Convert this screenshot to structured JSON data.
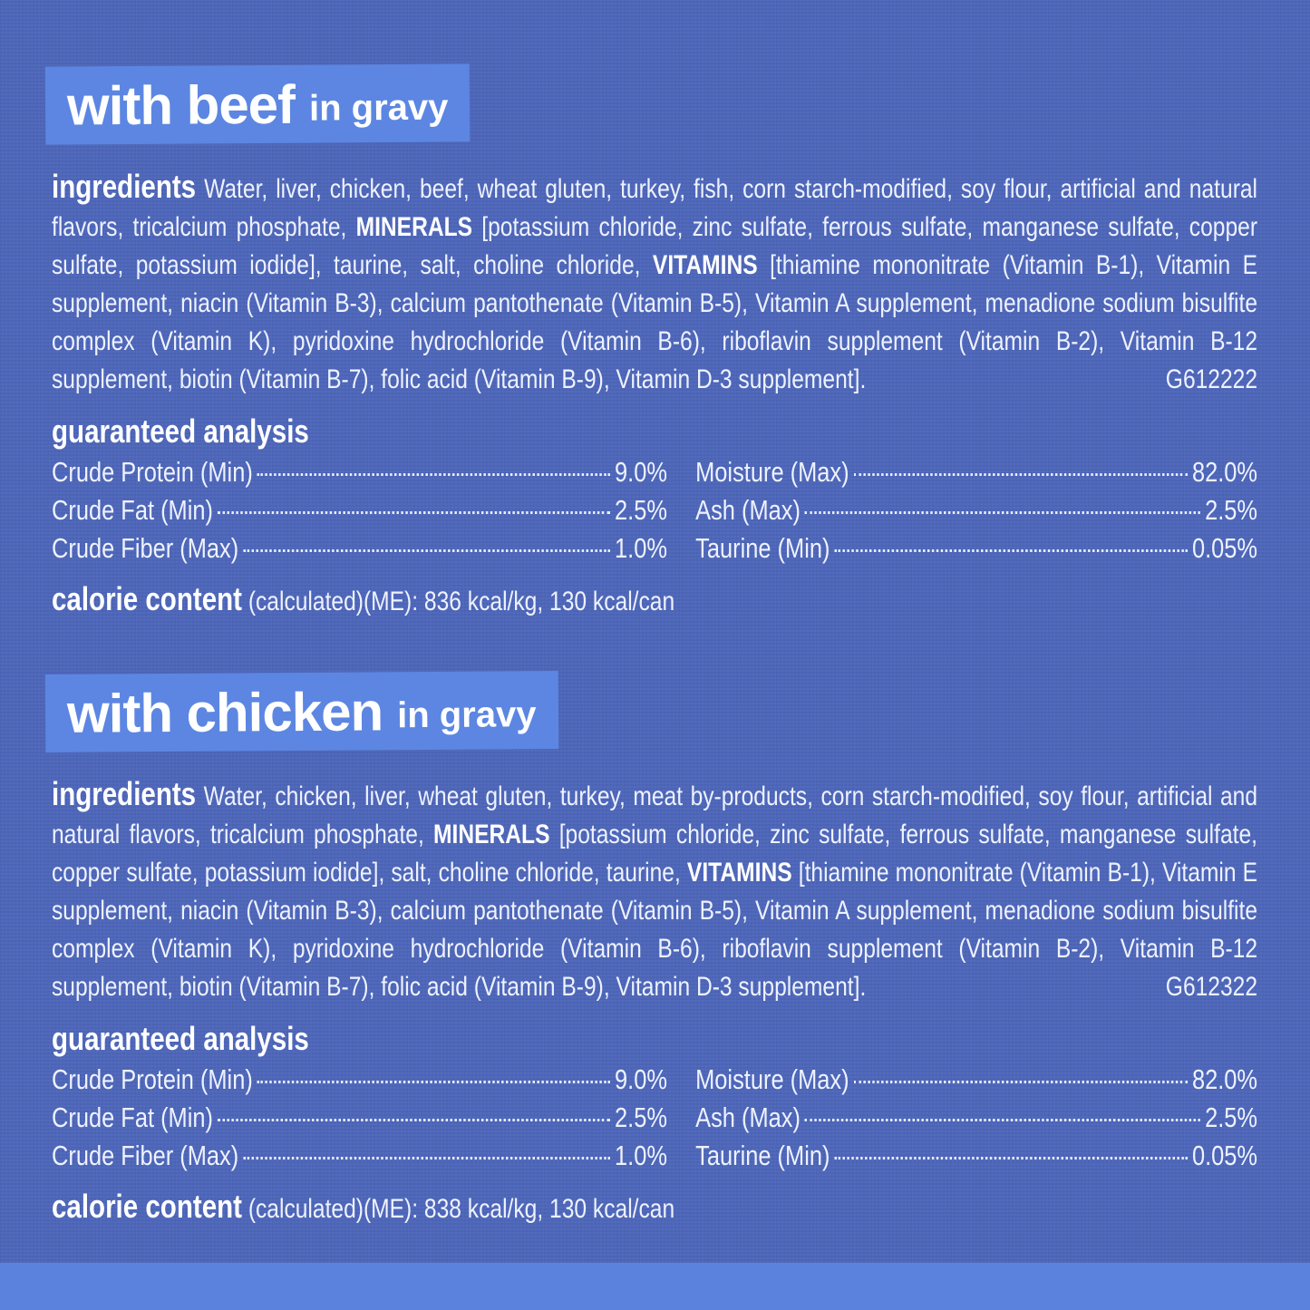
{
  "sections": [
    {
      "title": {
        "main": "with beef",
        "sub": "in gravy"
      },
      "ingredients": {
        "label": "ingredients",
        "text_1": "Water, liver, chicken, beef, wheat gluten, turkey, fish, corn starch-modified, soy flour, artificial and natural flavors, tricalcium phosphate,",
        "minerals_label": "MINERALS",
        "text_2": "[potassium chloride, zinc sulfate, ferrous sulfate, manganese sulfate, copper sulfate, potassium iodide], taurine, salt, choline chloride,",
        "vitamins_label": "VITAMINS",
        "text_3": "[thiamine mononitrate (Vitamin B-1), Vitamin E supplement, niacin (Vitamin B-3), calcium pantothenate (Vitamin B-5), Vitamin A supplement, menadione sodium bisulfite complex (Vitamin K), pyridoxine hydrochloride (Vitamin B-6), riboflavin supplement (Vitamin B-2), Vitamin B-12 supplement, biotin (Vitamin B-7), folic acid (Vitamin B-9), Vitamin D-3 supplement].",
        "code": "G612222"
      },
      "analysis": {
        "heading": "guaranteed analysis",
        "left": [
          {
            "label": "Crude Protein (Min)",
            "value": "9.0%"
          },
          {
            "label": "Crude Fat (Min)",
            "value": "2.5%"
          },
          {
            "label": "Crude Fiber (Max)",
            "value": "1.0%"
          }
        ],
        "right": [
          {
            "label": "Moisture (Max)",
            "value": "82.0%"
          },
          {
            "label": "Ash (Max)",
            "value": "2.5%"
          },
          {
            "label": "Taurine (Min)",
            "value": "0.05%"
          }
        ]
      },
      "calorie": {
        "label": "calorie content",
        "text": "(calculated)(ME): 836 kcal/kg, 130 kcal/can"
      }
    },
    {
      "title": {
        "main": "with chicken",
        "sub": "in gravy"
      },
      "ingredients": {
        "label": "ingredients",
        "text_1": "Water, chicken, liver, wheat gluten, turkey, meat by-products, corn starch-modified, soy flour, artificial and natural flavors, tricalcium phosphate,",
        "minerals_label": "MINERALS",
        "text_2": "[potassium chloride, zinc sulfate, ferrous sulfate, manganese sulfate, copper sulfate, potassium iodide], salt, choline chloride, taurine,",
        "vitamins_label": "VITAMINS",
        "text_3": "[thiamine mononitrate (Vitamin B-1), Vitamin E supplement, niacin (Vitamin B-3), calcium pantothenate (Vitamin B-5), Vitamin A supplement, menadione sodium bisulfite complex (Vitamin K), pyridoxine hydrochloride (Vitamin B-6), riboflavin supplement (Vitamin B-2), Vitamin B-12 supplement, biotin (Vitamin B-7), folic acid (Vitamin B-9), Vitamin D-3 supplement].",
        "code": "G612322"
      },
      "analysis": {
        "heading": "guaranteed analysis",
        "left": [
          {
            "label": "Crude Protein (Min)",
            "value": "9.0%"
          },
          {
            "label": "Crude Fat (Min)",
            "value": "2.5%"
          },
          {
            "label": "Crude Fiber (Max)",
            "value": "1.0%"
          }
        ],
        "right": [
          {
            "label": "Moisture (Max)",
            "value": "82.0%"
          },
          {
            "label": "Ash (Max)",
            "value": "2.5%"
          },
          {
            "label": "Taurine (Min)",
            "value": "0.05%"
          }
        ]
      },
      "calorie": {
        "label": "calorie content",
        "text": "(calculated)(ME): 838 kcal/kg, 130 kcal/can"
      }
    }
  ]
}
